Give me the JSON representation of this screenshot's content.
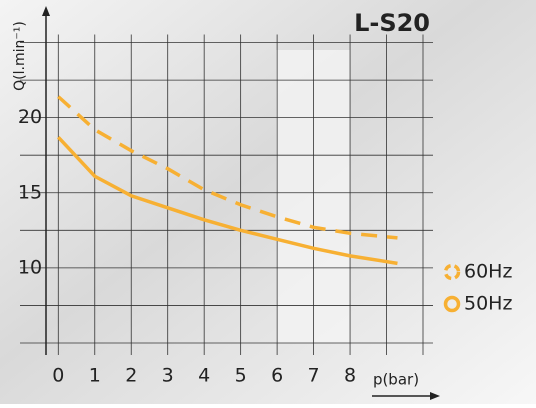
{
  "chart_data": {
    "type": "line",
    "title": "L-S20",
    "y_label": "Q(l.min⁻¹)",
    "x_label": "p(bar)",
    "x": [
      0,
      1,
      2,
      3,
      4,
      5,
      6,
      7,
      8,
      9.3
    ],
    "series": [
      {
        "name": "60Hz",
        "color": "#f7b033",
        "dashed": true,
        "values": [
          21.4,
          19.2,
          17.8,
          16.6,
          15.2,
          14.2,
          13.4,
          12.7,
          12.3,
          12.0
        ]
      },
      {
        "name": "50Hz",
        "color": "#f7b033",
        "dashed": false,
        "values": [
          18.7,
          16.1,
          14.8,
          14.0,
          13.2,
          12.5,
          11.9,
          11.3,
          10.8,
          10.3
        ]
      }
    ],
    "xlim": [
      -1.05,
      10
    ],
    "ylim": [
      4.2,
      26.5
    ],
    "xticks": [
      0,
      1,
      2,
      3,
      4,
      5,
      6,
      7,
      8
    ],
    "yticks": [
      10,
      15,
      20
    ],
    "xgrid": [
      0,
      1,
      2,
      3,
      4,
      5,
      6,
      7,
      8,
      9,
      10
    ],
    "ygrid": [
      5,
      7.5,
      10,
      12.5,
      15,
      17.5,
      20,
      22.5,
      25
    ],
    "grid": true
  }
}
